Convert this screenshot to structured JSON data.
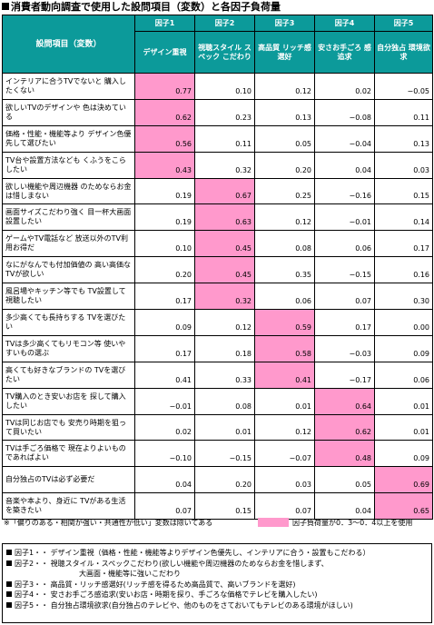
{
  "title": "消費者動向調査で使用した設問項目（変数）と各因子負荷量",
  "header": {
    "item_label": "設問項目（変数）",
    "factors": [
      {
        "label": "因子1",
        "desc": "デザイン重視"
      },
      {
        "label": "因子2",
        "desc": "視聴スタイル スペック こだわり"
      },
      {
        "label": "因子3",
        "desc": "高品質 リッチ感選好"
      },
      {
        "label": "因子4",
        "desc": "安さお手ごろ 感追求"
      },
      {
        "label": "因子5",
        "desc": "自分独占 環境欲求"
      }
    ]
  },
  "highlight_color": "#ff99cc",
  "rows": [
    {
      "item": "インテリアに合うTVでないと 購入したくない",
      "values": [
        "0.77",
        "0.10",
        "0.12",
        "0.02",
        "−0.05"
      ],
      "highlight": 0
    },
    {
      "item": "欲しいTVのデザインや 色は決めている",
      "values": [
        "0.62",
        "0.23",
        "0.13",
        "−0.08",
        "0.11"
      ],
      "highlight": 0
    },
    {
      "item": "価格・性能・機能等より デザイン色優先して選びたい",
      "values": [
        "0.56",
        "0.11",
        "0.05",
        "−0.04",
        "0.13"
      ],
      "highlight": 0
    },
    {
      "item": "TV台や設置方法なども くふうをこらしたい",
      "values": [
        "0.43",
        "0.32",
        "0.20",
        "0.04",
        "0.03"
      ],
      "highlight": 0
    },
    {
      "item": "欲しい機能や周辺機器 のためならお金は惜しまない",
      "values": [
        "0.19",
        "0.67",
        "0.25",
        "−0.16",
        "0.15"
      ],
      "highlight": 1
    },
    {
      "item": "画面サイズこだわり強く 目一杯大画面設置したい",
      "values": [
        "0.19",
        "0.63",
        "0.12",
        "−0.01",
        "0.14"
      ],
      "highlight": 1
    },
    {
      "item": "ゲームやTV電話など 放送以外のTV利用お得だ",
      "values": [
        "0.10",
        "0.45",
        "0.08",
        "0.06",
        "0.17"
      ],
      "highlight": 1
    },
    {
      "item": "なにがなんでも付加価値の 高い高価なTVが欲しい",
      "values": [
        "0.20",
        "0.45",
        "0.35",
        "−0.15",
        "0.16"
      ],
      "highlight": 1
    },
    {
      "item": "風呂場やキッチン等でも TV設置して視聴したい",
      "values": [
        "0.17",
        "0.32",
        "0.06",
        "0.07",
        "0.30"
      ],
      "highlight": 1
    },
    {
      "item": "多少高くても長持ちする TVを選びたい",
      "values": [
        "0.09",
        "0.12",
        "0.59",
        "0.17",
        "0.00"
      ],
      "highlight": 2
    },
    {
      "item": "TVは多少高くてもリモコン等 使いやすいもの選ぶ",
      "values": [
        "0.17",
        "0.18",
        "0.58",
        "−0.03",
        "0.09"
      ],
      "highlight": 2
    },
    {
      "item": "高くても好きなブランドの TVを選びたい",
      "values": [
        "0.41",
        "0.33",
        "0.41",
        "−0.17",
        "0.06"
      ],
      "highlight": 2
    },
    {
      "item": "TV購入のとき安いお店を 探して購入したい",
      "values": [
        "−0.01",
        "0.08",
        "0.01",
        "0.64",
        "0.01"
      ],
      "highlight": 3
    },
    {
      "item": "TVは同じお店でも 安売り時期を狙って買いたい",
      "values": [
        "0.02",
        "0.01",
        "0.12",
        "0.62",
        "0.01"
      ],
      "highlight": 3
    },
    {
      "item": "TVは手ごろ価格で 現在よりよいものであればよい",
      "values": [
        "−0.10",
        "−0.15",
        "−0.07",
        "0.48",
        "0.09"
      ],
      "highlight": 3
    },
    {
      "item": "自分独占のTVは必ず必要だ",
      "values": [
        "0.04",
        "0.20",
        "0.03",
        "0.05",
        "0.69"
      ],
      "highlight": 4
    },
    {
      "item": "音楽や本より、身近に TVがある生活を築きたい",
      "values": [
        "0.07",
        "0.15",
        "0.07",
        "0.04",
        "0.65"
      ],
      "highlight": 4
    }
  ],
  "footnote": {
    "note": "※「偏りのある・相関が強い・共通性が低い」変数は除いてある",
    "legend": "因子負荷量が0．3〜0．4以上を使用"
  },
  "definitions": [
    "因子1・・ デザイン重視（価格・性能・機能等よりデザイン色優先し、インテリアに合う・設置もこだわる）",
    "因子2・・ 視聴スタイル・スペックこだわり(欲しい機能や周辺機器のためならお金を惜しまず、",
    "大画面・機能等に強いこだわり",
    "因子3・・ 高品質・リッチ感選好(リッチ感を得るため高品質で、高いブランドを選好)",
    "因子4・・ 安さお手ごろ感追求(安いお店・時期を探り、手ごろな価格でテレビを購入したい)",
    "因子5・・ 自分独占環境欲求(自分独占のテレビや、他のものをさておいてもテレビのある環境がほしい)"
  ]
}
